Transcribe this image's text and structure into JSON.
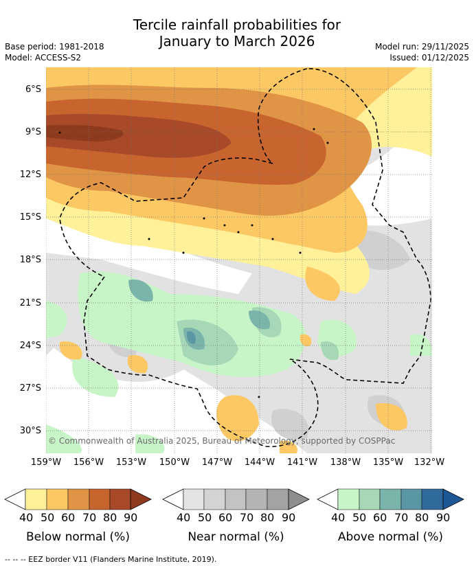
{
  "title_line1": "Tercile rainfall probabilities for",
  "title_line2": "January to March 2026",
  "base_period": "Base period: 1981-2018",
  "model": "Model: ACCESS-S2",
  "model_run": "Model run: 29/11/2025",
  "issued": "Issued: 01/12/2025",
  "lat_labels": [
    "6°S",
    "9°S",
    "12°S",
    "15°S",
    "18°S",
    "21°S",
    "24°S",
    "27°S",
    "30°S"
  ],
  "lon_labels": [
    "159°W",
    "156°W",
    "153°W",
    "150°W",
    "147°W",
    "144°W",
    "141°W",
    "138°W",
    "135°W",
    "132°W"
  ],
  "copyright": "© Commonwealth of Australia 2025, Bureau of Meteorology, supported by COSPPac",
  "colorbars": [
    {
      "title": "Below normal (%)",
      "ticks": [
        "40",
        "50",
        "60",
        "70",
        "80",
        "90"
      ],
      "colors": [
        "#fff09a",
        "#fcc863",
        "#e09446",
        "#c8652f",
        "#a8492a",
        "#8e3a1e"
      ]
    },
    {
      "title": "Near normal (%)",
      "ticks": [
        "40",
        "50",
        "60",
        "70",
        "80",
        "90"
      ],
      "colors": [
        "#e4e4e4",
        "#d3d3d3",
        "#c3c3c3",
        "#b4b4b4",
        "#a3a3a3",
        "#8e8e8e"
      ]
    },
    {
      "title": "Above normal (%)",
      "ticks": [
        "40",
        "50",
        "60",
        "70",
        "80",
        "90"
      ],
      "colors": [
        "#c8f5c8",
        "#a6d8b8",
        "#7ab4aa",
        "#5a96a4",
        "#306a9c",
        "#1c5896"
      ]
    }
  ],
  "footer": "-- -- -- EEZ border V11 (Flanders Marine Institute, 2019)."
}
